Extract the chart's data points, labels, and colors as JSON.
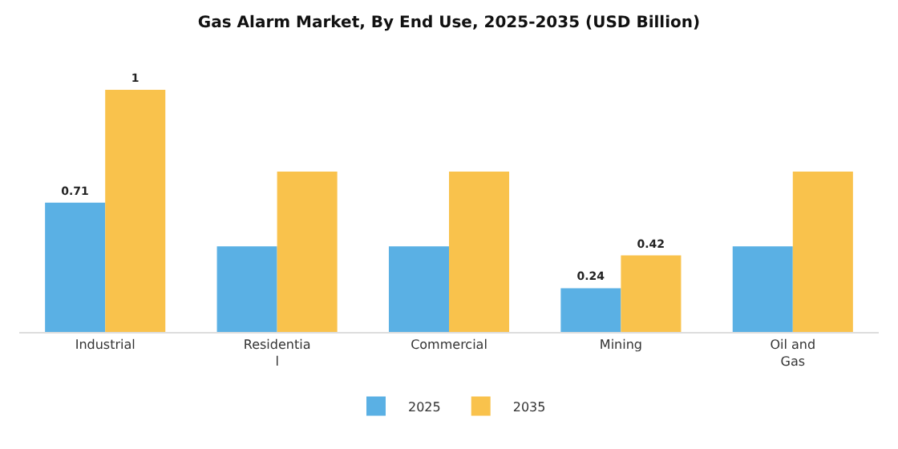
{
  "chart_data": {
    "type": "bar",
    "title": "Gas Alarm Market, By End Use, 2025-2035 (USD Billion)",
    "categories": [
      "Industrial",
      "Residentia\nl",
      "Commercial",
      "Mining",
      "Oil and\nGas"
    ],
    "series": [
      {
        "name": "2025",
        "color": "#5ab0e4",
        "values": [
          0.71,
          0.47,
          0.47,
          0.24,
          0.47
        ],
        "value_labels": [
          "0.71",
          null,
          null,
          "0.24",
          null
        ]
      },
      {
        "name": "2035",
        "color": "#f9c24c",
        "values": [
          1.33,
          0.88,
          0.88,
          0.42,
          0.88
        ],
        "value_labels": [
          "1",
          null,
          null,
          "0.42",
          null
        ]
      }
    ],
    "legend": "bottom",
    "grid": false
  }
}
